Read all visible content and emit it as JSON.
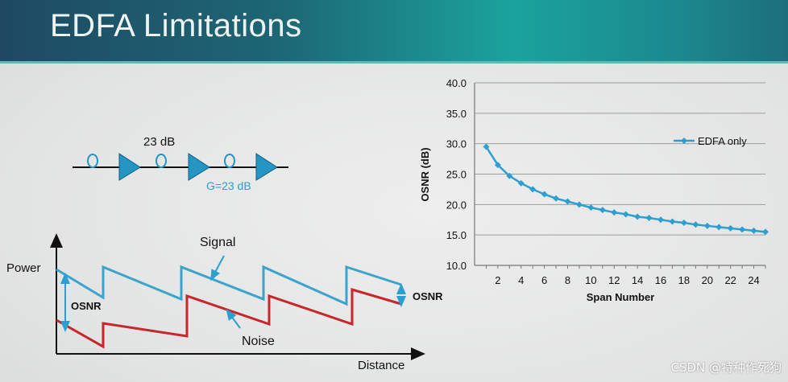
{
  "slide": {
    "title": "EDFA Limitations",
    "watermark": "CSDN @特种作死狗"
  },
  "amp_diagram": {
    "gain_top": "23 dB",
    "gain_bottom": "G=23 dB"
  },
  "power_diagram": {
    "ylabel": "Power",
    "xlabel": "Distance",
    "signal_label": "Signal",
    "noise_label": "Noise",
    "osnr_left": "OSNR",
    "osnr_right": "OSNR"
  },
  "colors": {
    "signal": "#3ca3cc",
    "noise": "#c8262b",
    "amplifier": "#2596c4",
    "series": "#2e9fd0"
  },
  "chart_data": {
    "type": "line",
    "xlabel": "Span Number",
    "ylabel": "OSNR (dB)",
    "xlim": [
      0,
      25
    ],
    "ylim": [
      10,
      40
    ],
    "xticks": [
      2,
      4,
      6,
      8,
      10,
      12,
      14,
      16,
      18,
      20,
      22,
      24
    ],
    "yticks": [
      "10.0",
      "15.0",
      "20.0",
      "25.0",
      "30.0",
      "35.0",
      "40.0"
    ],
    "grid": true,
    "legend_position": "right",
    "series": [
      {
        "name": "EDFA only",
        "x": [
          1,
          2,
          3,
          4,
          5,
          6,
          7,
          8,
          9,
          10,
          11,
          12,
          13,
          14,
          15,
          16,
          17,
          18,
          19,
          20,
          21,
          22,
          23,
          24,
          25
        ],
        "y": [
          29.5,
          26.5,
          24.7,
          23.5,
          22.5,
          21.7,
          21.0,
          20.5,
          20.0,
          19.5,
          19.1,
          18.7,
          18.4,
          18.0,
          17.8,
          17.5,
          17.2,
          17.0,
          16.7,
          16.5,
          16.3,
          16.1,
          15.9,
          15.7,
          15.5
        ]
      }
    ]
  }
}
